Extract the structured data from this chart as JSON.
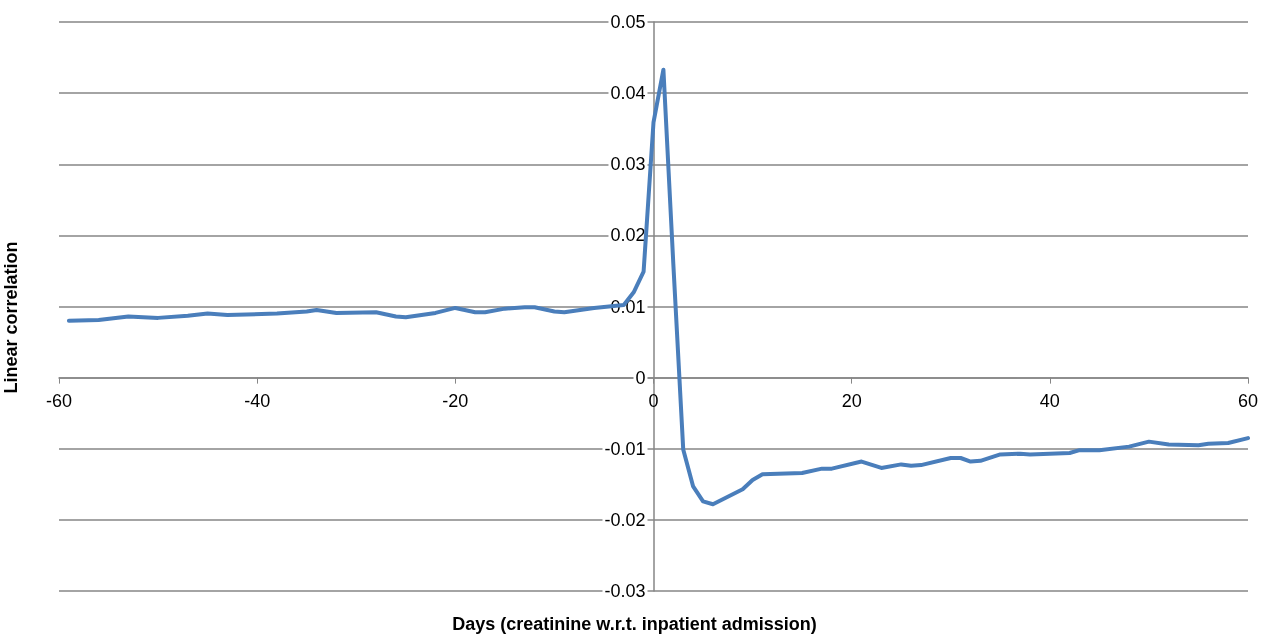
{
  "chart_data": {
    "type": "line",
    "xlabel": "Days (creatinine w.r.t. inpatient admission)",
    "ylabel": "Linear correlation",
    "x": [
      -59,
      -56,
      -53,
      -50,
      -47,
      -45,
      -43,
      -38,
      -35,
      -34,
      -32,
      -28,
      -26,
      -25,
      -22,
      -20,
      -18,
      -17,
      -15,
      -13,
      -12,
      -10,
      -9,
      -6,
      -3,
      -2,
      -1,
      0,
      1,
      2,
      3,
      4,
      5,
      6,
      9,
      10,
      11,
      15,
      17,
      18,
      21,
      23,
      25,
      26,
      27,
      30,
      31,
      32,
      33,
      35,
      37,
      38,
      42,
      43,
      45,
      48,
      50,
      52,
      55,
      56,
      58,
      60
    ],
    "series": [
      {
        "color": "#4a7ebb",
        "values": [
          0.008,
          0.0081,
          0.0086,
          0.0084,
          0.0087,
          0.009,
          0.0088,
          0.009,
          0.0093,
          0.0095,
          0.0091,
          0.0092,
          0.0086,
          0.0085,
          0.0091,
          0.0098,
          0.0092,
          0.0092,
          0.0097,
          0.0099,
          0.0099,
          0.0093,
          0.0092,
          0.0098,
          0.0102,
          0.012,
          0.0149,
          0.0359,
          0.0433,
          0.016,
          -0.0101,
          -0.0153,
          -0.0174,
          -0.0178,
          -0.0157,
          -0.0144,
          -0.0136,
          -0.0134,
          -0.0128,
          -0.0128,
          -0.0118,
          -0.0127,
          -0.0122,
          -0.0124,
          -0.0123,
          -0.0113,
          -0.0113,
          -0.0118,
          -0.0117,
          -0.0108,
          -0.0107,
          -0.0108,
          -0.0106,
          -0.0102,
          -0.0102,
          -0.0097,
          -0.009,
          -0.0094,
          -0.0095,
          -0.0093,
          -0.0092,
          -0.0085
        ]
      }
    ],
    "xlim": [
      -60,
      60
    ],
    "xticks": [
      -60,
      -40,
      -20,
      0,
      20,
      40,
      60
    ],
    "ylim": [
      -0.03,
      0.05
    ],
    "yticks": [
      -0.03,
      -0.02,
      -0.01,
      0,
      0.01,
      0.02,
      0.03,
      0.04,
      0.05
    ],
    "grid": "y",
    "marker": "none",
    "line_style": "solid"
  }
}
